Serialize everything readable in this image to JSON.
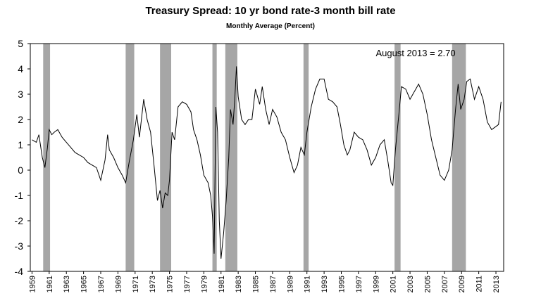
{
  "chart_data": {
    "type": "line",
    "title": "Treasury Spread: 10 yr bond rate-3 month bill rate",
    "subtitle": "Monthly Average (Percent)",
    "annotation": "August 2013 = 2.70",
    "xlim": [
      1958.8,
      2013.9
    ],
    "ylim": [
      -4,
      5
    ],
    "yticks": [
      -4,
      -3,
      -2,
      -1,
      0,
      1,
      2,
      3,
      4,
      5
    ],
    "xticks": [
      1959,
      1961,
      1963,
      1965,
      1967,
      1969,
      1971,
      1973,
      1975,
      1977,
      1979,
      1981,
      1983,
      1985,
      1987,
      1989,
      1991,
      1993,
      1995,
      1997,
      1999,
      2001,
      2003,
      2005,
      2007,
      2009,
      2011,
      2013
    ],
    "recession_color": "#a6a6a6",
    "recessions": [
      [
        1960.3,
        1961.1
      ],
      [
        1969.9,
        1970.9
      ],
      [
        1973.9,
        1975.2
      ],
      [
        1980.0,
        1980.5
      ],
      [
        1981.5,
        1982.9
      ],
      [
        1990.6,
        1991.2
      ],
      [
        2001.2,
        2001.9
      ],
      [
        2007.9,
        2009.5
      ]
    ],
    "series": [
      {
        "color": "#000000",
        "x": [
          1959.0,
          1959.5,
          1959.8,
          1960.2,
          1960.5,
          1960.8,
          1961.0,
          1961.3,
          1961.6,
          1962.0,
          1962.5,
          1963.0,
          1963.5,
          1964.0,
          1964.5,
          1965.0,
          1965.5,
          1966.0,
          1966.5,
          1967.0,
          1967.5,
          1967.8,
          1968.0,
          1968.5,
          1969.0,
          1969.5,
          1969.9,
          1970.3,
          1970.8,
          1971.2,
          1971.5,
          1972.0,
          1972.4,
          1972.8,
          1973.2,
          1973.6,
          1973.9,
          1974.2,
          1974.5,
          1974.8,
          1975.0,
          1975.3,
          1975.6,
          1976.0,
          1976.5,
          1977.0,
          1977.5,
          1977.8,
          1978.2,
          1978.6,
          1979.0,
          1979.5,
          1979.8,
          1980.0,
          1980.2,
          1980.4,
          1980.6,
          1980.8,
          1981.0,
          1981.3,
          1981.6,
          1981.9,
          1982.1,
          1982.4,
          1982.6,
          1982.8,
          1983.0,
          1983.4,
          1983.8,
          1984.2,
          1984.6,
          1985.0,
          1985.5,
          1985.8,
          1986.2,
          1986.6,
          1987.0,
          1987.5,
          1988.0,
          1988.5,
          1989.0,
          1989.5,
          1989.9,
          1990.3,
          1990.7,
          1991.0,
          1991.5,
          1992.0,
          1992.5,
          1993.0,
          1993.5,
          1994.0,
          1994.5,
          1994.9,
          1995.3,
          1995.7,
          1996.0,
          1996.5,
          1997.0,
          1997.5,
          1998.0,
          1998.5,
          1999.0,
          1999.5,
          2000.0,
          2000.4,
          2000.8,
          2001.0,
          2001.3,
          2001.7,
          2002.0,
          2002.5,
          2003.0,
          2003.5,
          2004.0,
          2004.5,
          2005.0,
          2005.5,
          2006.0,
          2006.5,
          2007.0,
          2007.5,
          2007.9,
          2008.3,
          2008.6,
          2008.9,
          2009.3,
          2009.6,
          2010.0,
          2010.5,
          2011.0,
          2011.5,
          2012.0,
          2012.5,
          2012.9,
          2013.3,
          2013.6
        ],
        "values": [
          1.2,
          1.1,
          1.4,
          0.5,
          0.1,
          0.9,
          1.6,
          1.4,
          1.5,
          1.6,
          1.3,
          1.1,
          0.9,
          0.7,
          0.6,
          0.5,
          0.3,
          0.2,
          0.1,
          -0.4,
          0.4,
          1.4,
          0.8,
          0.5,
          0.1,
          -0.2,
          -0.5,
          0.3,
          1.2,
          2.2,
          1.3,
          2.8,
          2.0,
          1.5,
          0.2,
          -1.2,
          -0.8,
          -1.5,
          -0.9,
          -1.0,
          -0.4,
          1.5,
          1.2,
          2.5,
          2.7,
          2.6,
          2.3,
          1.6,
          1.2,
          0.6,
          -0.2,
          -0.5,
          -1.0,
          -1.8,
          -3.3,
          2.5,
          1.5,
          -2.0,
          -3.5,
          -2.5,
          -1.2,
          0.5,
          2.4,
          1.8,
          2.8,
          4.1,
          2.9,
          2.0,
          1.8,
          2.0,
          2.0,
          3.2,
          2.6,
          3.3,
          2.4,
          1.8,
          2.4,
          2.1,
          1.5,
          1.2,
          0.5,
          -0.1,
          0.2,
          0.9,
          0.6,
          1.5,
          2.5,
          3.2,
          3.6,
          3.6,
          2.8,
          2.7,
          2.5,
          1.8,
          1.0,
          0.6,
          0.8,
          1.5,
          1.3,
          1.2,
          0.8,
          0.2,
          0.5,
          1.0,
          1.2,
          0.4,
          -0.5,
          -0.6,
          0.8,
          2.2,
          3.3,
          3.2,
          2.8,
          3.1,
          3.4,
          3.0,
          2.2,
          1.2,
          0.5,
          -0.2,
          -0.4,
          0.0,
          0.8,
          2.4,
          3.4,
          2.4,
          2.8,
          3.5,
          3.6,
          2.8,
          3.3,
          2.8,
          1.9,
          1.6,
          1.7,
          1.8,
          2.7
        ]
      }
    ]
  }
}
